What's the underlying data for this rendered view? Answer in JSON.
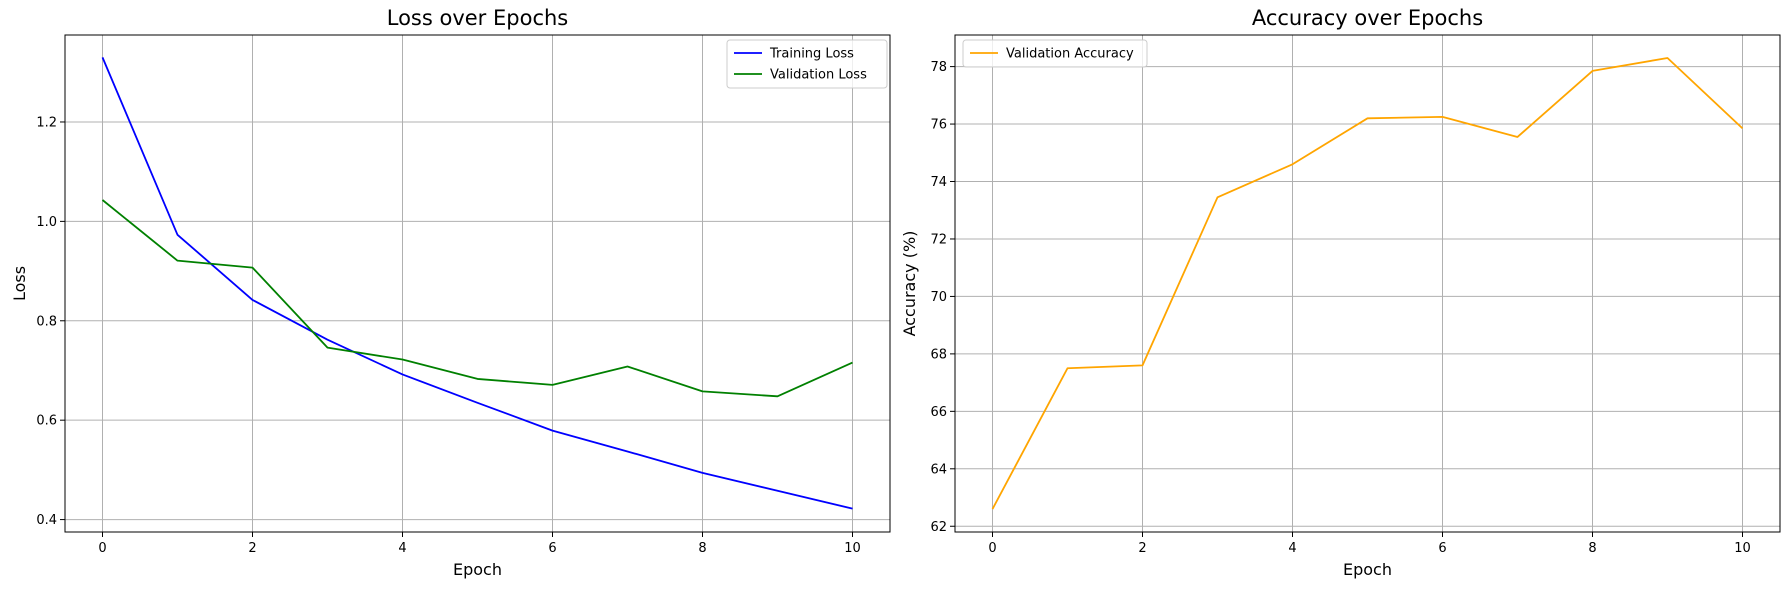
{
  "chart_data": [
    {
      "type": "line",
      "title": "Loss over Epochs",
      "xlabel": "Epoch",
      "ylabel": "Loss",
      "xlim": [
        -0.5,
        10.5
      ],
      "ylim": [
        0.375,
        1.375
      ],
      "xticks": [
        0,
        2,
        4,
        6,
        8,
        10
      ],
      "xtick_labels": [
        "0",
        "2",
        "4",
        "6",
        "8",
        "10"
      ],
      "yticks": [
        0.4,
        0.6,
        0.8,
        1.0,
        1.2
      ],
      "ytick_labels": [
        "0.4",
        "0.6",
        "0.8",
        "1.0",
        "1.2"
      ],
      "grid": true,
      "legend_position": "top-right",
      "x": [
        0,
        1,
        2,
        3,
        4,
        5,
        6,
        7,
        8,
        9,
        10
      ],
      "series": [
        {
          "name": "Training Loss",
          "color": "#0000ff",
          "values": [
            1.33,
            0.973,
            0.842,
            0.762,
            0.692,
            0.635,
            0.579,
            0.537,
            0.494,
            0.458,
            0.422
          ]
        },
        {
          "name": "Validation Loss",
          "color": "#008000",
          "values": [
            1.043,
            0.921,
            0.907,
            0.746,
            0.722,
            0.683,
            0.671,
            0.708,
            0.658,
            0.648,
            0.716
          ]
        }
      ]
    },
    {
      "type": "line",
      "title": "Accuracy over Epochs",
      "xlabel": "Epoch",
      "ylabel": "Accuracy (%)",
      "xlim": [
        -0.5,
        10.5
      ],
      "ylim": [
        61.8,
        79.1
      ],
      "xticks": [
        0,
        2,
        4,
        6,
        8,
        10
      ],
      "xtick_labels": [
        "0",
        "2",
        "4",
        "6",
        "8",
        "10"
      ],
      "yticks": [
        62,
        64,
        66,
        68,
        70,
        72,
        74,
        76,
        78
      ],
      "ytick_labels": [
        "62",
        "64",
        "66",
        "68",
        "70",
        "72",
        "74",
        "76",
        "78"
      ],
      "grid": true,
      "legend_position": "top-left",
      "x": [
        0,
        1,
        2,
        3,
        4,
        5,
        6,
        7,
        8,
        9,
        10
      ],
      "series": [
        {
          "name": "Validation Accuracy",
          "color": "#ffa500",
          "values": [
            62.6,
            67.5,
            67.6,
            73.45,
            74.6,
            76.2,
            76.25,
            75.55,
            77.85,
            78.3,
            75.85
          ]
        }
      ]
    }
  ]
}
